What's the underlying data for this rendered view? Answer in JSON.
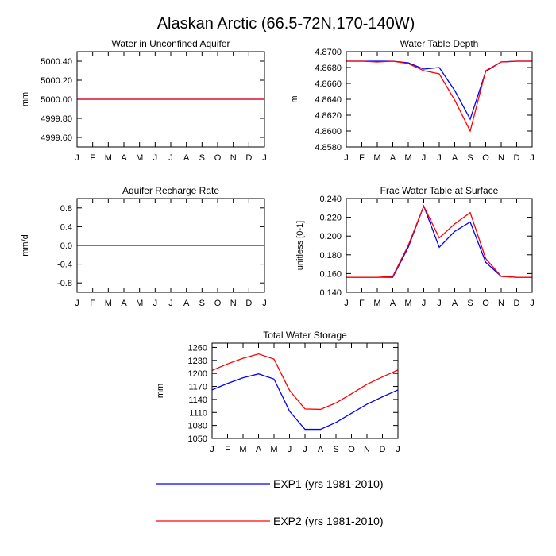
{
  "page": {
    "title": "Alaskan Arctic (66.5-72N,170-140W)"
  },
  "legend": [
    {
      "label": "EXP1 (yrs 1981-2010)",
      "color": "#0000ff"
    },
    {
      "label": "EXP2 (yrs 1981-2010)",
      "color": "#ff0000"
    }
  ],
  "chart_data": [
    {
      "type": "line",
      "title": "Water in Unconfined Aquifer",
      "ylabel": "mm",
      "categories": [
        "J",
        "F",
        "M",
        "A",
        "M",
        "J",
        "J",
        "A",
        "S",
        "O",
        "N",
        "D",
        "J"
      ],
      "ylim": [
        4999.5,
        5000.5
      ],
      "yticks": [
        4999.6,
        4999.8,
        5000.0,
        5000.2,
        5000.4
      ],
      "ytick_labels": [
        "4999.60",
        "4999.80",
        "5000.00",
        "5000.20",
        "5000.40"
      ],
      "series": [
        {
          "name": "EXP1 (yrs 1981-2010)",
          "color": "#0000ff",
          "values": [
            5000,
            5000,
            5000,
            5000,
            5000,
            5000,
            5000,
            5000,
            5000,
            5000,
            5000,
            5000,
            5000
          ]
        },
        {
          "name": "EXP2 (yrs 1981-2010)",
          "color": "#ff0000",
          "values": [
            5000,
            5000,
            5000,
            5000,
            5000,
            5000,
            5000,
            5000,
            5000,
            5000,
            5000,
            5000,
            5000
          ]
        }
      ]
    },
    {
      "type": "line",
      "title": "Water Table Depth",
      "ylabel": "m",
      "categories": [
        "J",
        "F",
        "M",
        "A",
        "M",
        "J",
        "J",
        "A",
        "S",
        "O",
        "N",
        "D",
        "J"
      ],
      "ylim": [
        4.858,
        4.87
      ],
      "yticks": [
        4.858,
        4.86,
        4.862,
        4.864,
        4.866,
        4.868,
        4.87
      ],
      "ytick_labels": [
        "4.8580",
        "4.8600",
        "4.8620",
        "4.8640",
        "4.8660",
        "4.8680",
        "4.8700"
      ],
      "series": [
        {
          "name": "EXP1 (yrs 1981-2010)",
          "color": "#0000ff",
          "values": [
            4.8688,
            4.8688,
            4.8688,
            4.8688,
            4.8686,
            4.8678,
            4.868,
            4.8651,
            4.8615,
            4.8675,
            4.8687,
            4.8688,
            4.8688
          ]
        },
        {
          "name": "EXP2 (yrs 1981-2010)",
          "color": "#ff0000",
          "values": [
            4.8688,
            4.8688,
            4.8687,
            4.8688,
            4.8685,
            4.8676,
            4.8672,
            4.8639,
            4.86,
            4.8676,
            4.8687,
            4.8688,
            4.8688
          ]
        }
      ]
    },
    {
      "type": "line",
      "title": "Aquifer Recharge Rate",
      "ylabel": "mm/d",
      "categories": [
        "J",
        "F",
        "M",
        "A",
        "M",
        "J",
        "J",
        "A",
        "S",
        "O",
        "N",
        "D",
        "J"
      ],
      "ylim": [
        -1.0,
        1.0
      ],
      "yticks": [
        -0.8,
        -0.4,
        0.0,
        0.4,
        0.8
      ],
      "ytick_labels": [
        "-0.8",
        "-0.4",
        "0.0",
        "0.4",
        "0.8"
      ],
      "series": [
        {
          "name": "EXP1 (yrs 1981-2010)",
          "color": "#0000ff",
          "values": [
            0,
            0,
            0,
            0,
            0,
            0,
            0,
            0,
            0,
            0,
            0,
            0,
            0
          ]
        },
        {
          "name": "EXP2 (yrs 1981-2010)",
          "color": "#ff0000",
          "values": [
            0,
            0,
            0,
            0,
            0,
            0,
            0,
            0,
            0,
            0,
            0,
            0,
            0
          ]
        }
      ]
    },
    {
      "type": "line",
      "title": "Frac Water Table at Surface",
      "ylabel": "unitless [0-1]",
      "categories": [
        "J",
        "F",
        "M",
        "A",
        "M",
        "J",
        "J",
        "A",
        "S",
        "O",
        "N",
        "D",
        "J"
      ],
      "ylim": [
        0.14,
        0.24
      ],
      "yticks": [
        0.14,
        0.16,
        0.18,
        0.2,
        0.22,
        0.24
      ],
      "ytick_labels": [
        "0.140",
        "0.160",
        "0.180",
        "0.200",
        "0.220",
        "0.240"
      ],
      "series": [
        {
          "name": "EXP1 (yrs 1981-2010)",
          "color": "#0000ff",
          "values": [
            0.156,
            0.156,
            0.156,
            0.156,
            0.188,
            0.232,
            0.188,
            0.205,
            0.215,
            0.172,
            0.157,
            0.156,
            0.156
          ]
        },
        {
          "name": "EXP2 (yrs 1981-2010)",
          "color": "#ff0000",
          "values": [
            0.156,
            0.156,
            0.156,
            0.157,
            0.19,
            0.232,
            0.198,
            0.213,
            0.225,
            0.176,
            0.157,
            0.156,
            0.156
          ]
        }
      ]
    },
    {
      "type": "line",
      "title": "Total Water Storage",
      "ylabel": "mm",
      "categories": [
        "J",
        "F",
        "M",
        "A",
        "M",
        "J",
        "J",
        "A",
        "S",
        "O",
        "N",
        "D",
        "J"
      ],
      "ylim": [
        1050,
        1270
      ],
      "yticks": [
        1050,
        1080,
        1110,
        1140,
        1170,
        1200,
        1230,
        1260
      ],
      "ytick_labels": [
        "1050",
        "1080",
        "1110",
        "1140",
        "1170",
        "1200",
        "1230",
        "1260"
      ],
      "series": [
        {
          "name": "EXP1 (yrs 1981-2010)",
          "color": "#0000ff",
          "values": [
            1162,
            1177,
            1190,
            1199,
            1187,
            1113,
            1071,
            1071,
            1087,
            1108,
            1129,
            1146,
            1162
          ]
        },
        {
          "name": "EXP2 (yrs 1981-2010)",
          "color": "#ff0000",
          "values": [
            1207,
            1222,
            1235,
            1245,
            1233,
            1161,
            1118,
            1117,
            1132,
            1153,
            1175,
            1192,
            1208
          ]
        }
      ]
    }
  ]
}
